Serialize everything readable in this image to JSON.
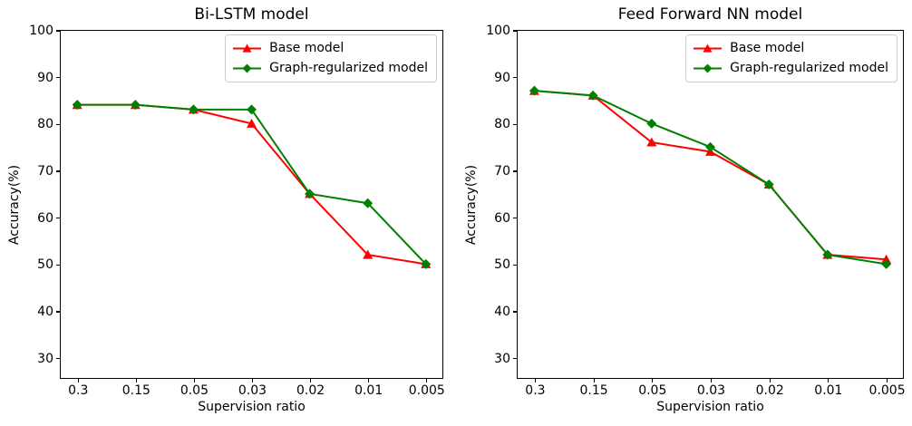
{
  "figure": {
    "background": "#ffffff",
    "spine_color": "#000000",
    "text_color": "#000000",
    "legend_border_color": "#cccccc"
  },
  "chart_data": [
    {
      "type": "line",
      "title": "Bi-LSTM model",
      "xlabel": "Supervision ratio",
      "ylabel": "Accuracy(%)",
      "categories": [
        "0.3",
        "0.15",
        "0.05",
        "0.03",
        "0.02",
        "0.01",
        "0.005"
      ],
      "yticks": [
        30,
        40,
        50,
        60,
        70,
        80,
        90,
        100
      ],
      "ylim": [
        25.5,
        100
      ],
      "x_edge_pad": 0.3,
      "grid": false,
      "legend_position": "upper right",
      "series": [
        {
          "name": "Base model",
          "color": "#ff0000",
          "marker": "triangle",
          "values": [
            84,
            84,
            83,
            80,
            65,
            52,
            50
          ]
        },
        {
          "name": "Graph-regularized model",
          "color": "#008000",
          "marker": "diamond",
          "values": [
            84,
            84,
            83,
            83,
            65,
            63,
            50
          ]
        }
      ]
    },
    {
      "type": "line",
      "title": "Feed Forward NN model",
      "xlabel": "Supervision ratio",
      "ylabel": "Accuracy(%)",
      "categories": [
        "0.3",
        "0.15",
        "0.05",
        "0.03",
        "0.02",
        "0.01",
        "0.005"
      ],
      "yticks": [
        30,
        40,
        50,
        60,
        70,
        80,
        90,
        100
      ],
      "ylim": [
        25.5,
        100
      ],
      "x_edge_pad": 0.3,
      "grid": false,
      "legend_position": "upper right",
      "series": [
        {
          "name": "Base model",
          "color": "#ff0000",
          "marker": "triangle",
          "values": [
            87,
            86,
            76,
            74,
            67,
            52,
            51
          ]
        },
        {
          "name": "Graph-regularized model",
          "color": "#008000",
          "marker": "diamond",
          "values": [
            87,
            86,
            80,
            75,
            67,
            52,
            50
          ]
        }
      ]
    }
  ]
}
